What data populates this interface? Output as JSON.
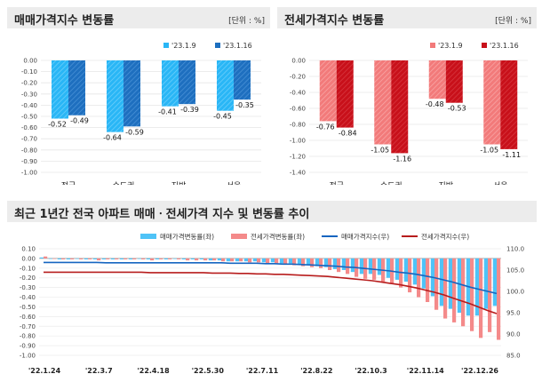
{
  "chart_data": [
    {
      "type": "bar",
      "title": "매매가격지수 변동률",
      "unit_label": "[단위 : %]",
      "categories": [
        "전국",
        "수도권",
        "지방",
        "서울"
      ],
      "series": [
        {
          "name": "'23.1.9",
          "values": [
            -0.52,
            -0.64,
            -0.41,
            -0.45
          ],
          "labels": [
            "-0.52",
            "-0.64",
            "-0.41",
            "-0.45"
          ],
          "color": "#29b6f6"
        },
        {
          "name": "'23.1.16",
          "values": [
            -0.49,
            -0.59,
            -0.39,
            -0.35
          ],
          "labels": [
            "-0.49",
            "-0.59",
            "-0.39",
            "-0.35"
          ],
          "color": "#1e6fbf"
        }
      ],
      "ylim": [
        -1.0,
        0.0
      ],
      "ytick_labels": [
        "0.00",
        "-0.10",
        "-0.20",
        "-0.30",
        "-0.40",
        "-0.50",
        "-0.60",
        "-0.70",
        "-0.80",
        "-0.90",
        "-1.00"
      ],
      "ytick_values": [
        0,
        -0.1,
        -0.2,
        -0.3,
        -0.4,
        -0.5,
        -0.6,
        -0.7,
        -0.8,
        -0.9,
        -1.0
      ]
    },
    {
      "type": "bar",
      "title": "전세가격지수 변동률",
      "unit_label": "[단위 : %]",
      "categories": [
        "전국",
        "수도권",
        "지방",
        "서울"
      ],
      "series": [
        {
          "name": "'23.1.9",
          "values": [
            -0.76,
            -1.05,
            -0.48,
            -1.05
          ],
          "labels": [
            "-0.76",
            "-1.05",
            "-0.48",
            "-1.05"
          ],
          "color": "#f27a7a"
        },
        {
          "name": "'23.1.16",
          "values": [
            -0.84,
            -1.16,
            -0.53,
            -1.11
          ],
          "labels": [
            "-0.84",
            "-1.16",
            "-0.53",
            "-1.11"
          ],
          "color": "#c8101a"
        }
      ],
      "ylim": [
        -1.4,
        0.0
      ],
      "ytick_labels": [
        "0.00",
        "-0.20",
        "-0.40",
        "-0.60",
        "-0.80",
        "-1.00",
        "-1.20",
        "-1.40"
      ],
      "ytick_values": [
        0,
        -0.2,
        -0.4,
        -0.6,
        -0.8,
        -1.0,
        -1.2,
        -1.4
      ]
    },
    {
      "type": "bar+line",
      "title": "최근 1년간 전국 아파트 매매ㆍ전세가격 지수 및 변동률 추이",
      "legend": [
        "매매가격변동률(좌)",
        "전세가격변동률(좌)",
        "매매가격지수(우)",
        "전세가격지수(우)"
      ],
      "x_tick_labels": [
        "'22.1.24",
        "'22.3.7",
        "'22.4.18",
        "'22.5.30",
        "'22.7.11",
        "'22.8.22",
        "'22.10.3",
        "'22.11.14",
        "'22.12.26"
      ],
      "y_left_ticks": [
        "0.10",
        "0.00",
        "-0.10",
        "-0.20",
        "-0.30",
        "-0.40",
        "-0.50",
        "-0.60",
        "-0.70",
        "-0.80",
        "-0.90",
        "-1.00"
      ],
      "y_left_values": [
        0.1,
        0,
        -0.1,
        -0.2,
        -0.3,
        -0.4,
        -0.5,
        -0.6,
        -0.7,
        -0.8,
        -0.9,
        -1.0
      ],
      "y_right_ticks": [
        "110.0",
        "105.0",
        "100.0",
        "95.0",
        "90.0",
        "85.0"
      ],
      "y_right_values": [
        110,
        105,
        100,
        95,
        90,
        85
      ],
      "ylim_left": [
        -1.0,
        0.1
      ],
      "ylim_right": [
        85,
        110
      ],
      "weeks": 52,
      "sale_rate": [
        0.01,
        0.0,
        -0.01,
        -0.01,
        0.0,
        -0.01,
        -0.01,
        -0.01,
        -0.01,
        -0.01,
        -0.01,
        0.0,
        -0.01,
        -0.01,
        -0.01,
        0.0,
        -0.01,
        -0.01,
        -0.01,
        -0.02,
        -0.02,
        -0.03,
        -0.03,
        -0.03,
        -0.03,
        -0.04,
        -0.04,
        -0.05,
        -0.05,
        -0.06,
        -0.07,
        -0.08,
        -0.09,
        -0.11,
        -0.12,
        -0.14,
        -0.16,
        -0.16,
        -0.17,
        -0.2,
        -0.22,
        -0.24,
        -0.27,
        -0.31,
        -0.39,
        -0.49,
        -0.52,
        -0.56,
        -0.59,
        -0.59,
        -0.52,
        -0.49
      ],
      "jeonse_rate": [
        0.02,
        0.0,
        -0.01,
        -0.01,
        -0.01,
        -0.01,
        -0.02,
        -0.01,
        -0.01,
        -0.01,
        -0.01,
        -0.01,
        -0.02,
        -0.01,
        -0.01,
        -0.01,
        -0.02,
        -0.02,
        -0.02,
        -0.02,
        -0.03,
        -0.03,
        -0.03,
        -0.04,
        -0.04,
        -0.05,
        -0.05,
        -0.06,
        -0.07,
        -0.08,
        -0.09,
        -0.1,
        -0.12,
        -0.14,
        -0.16,
        -0.19,
        -0.21,
        -0.22,
        -0.24,
        -0.26,
        -0.3,
        -0.35,
        -0.4,
        -0.45,
        -0.53,
        -0.62,
        -0.66,
        -0.7,
        -0.75,
        -0.82,
        -0.76,
        -0.84
      ],
      "sale_index": [
        106.8,
        106.8,
        106.8,
        106.8,
        106.8,
        106.8,
        106.8,
        106.7,
        106.7,
        106.7,
        106.7,
        106.7,
        106.7,
        106.7,
        106.7,
        106.7,
        106.7,
        106.7,
        106.7,
        106.7,
        106.7,
        106.6,
        106.6,
        106.6,
        106.6,
        106.5,
        106.5,
        106.4,
        106.4,
        106.3,
        106.2,
        106.1,
        106.0,
        105.9,
        105.7,
        105.6,
        105.4,
        105.2,
        105.0,
        104.8,
        104.5,
        104.3,
        104.0,
        103.6,
        103.2,
        102.7,
        102.2,
        101.6,
        101.0,
        100.5,
        100.0,
        99.5
      ],
      "jeonse_index": [
        104.5,
        104.5,
        104.5,
        104.5,
        104.5,
        104.5,
        104.5,
        104.5,
        104.5,
        104.5,
        104.5,
        104.5,
        104.4,
        104.4,
        104.4,
        104.4,
        104.4,
        104.4,
        104.4,
        104.3,
        104.3,
        104.3,
        104.2,
        104.2,
        104.1,
        104.1,
        104.0,
        104.0,
        103.9,
        103.8,
        103.7,
        103.6,
        103.5,
        103.3,
        103.1,
        102.9,
        102.7,
        102.5,
        102.2,
        101.9,
        101.6,
        101.2,
        100.8,
        100.3,
        99.8,
        99.2,
        98.5,
        97.8,
        97.1,
        96.3,
        95.5,
        94.8
      ]
    }
  ]
}
